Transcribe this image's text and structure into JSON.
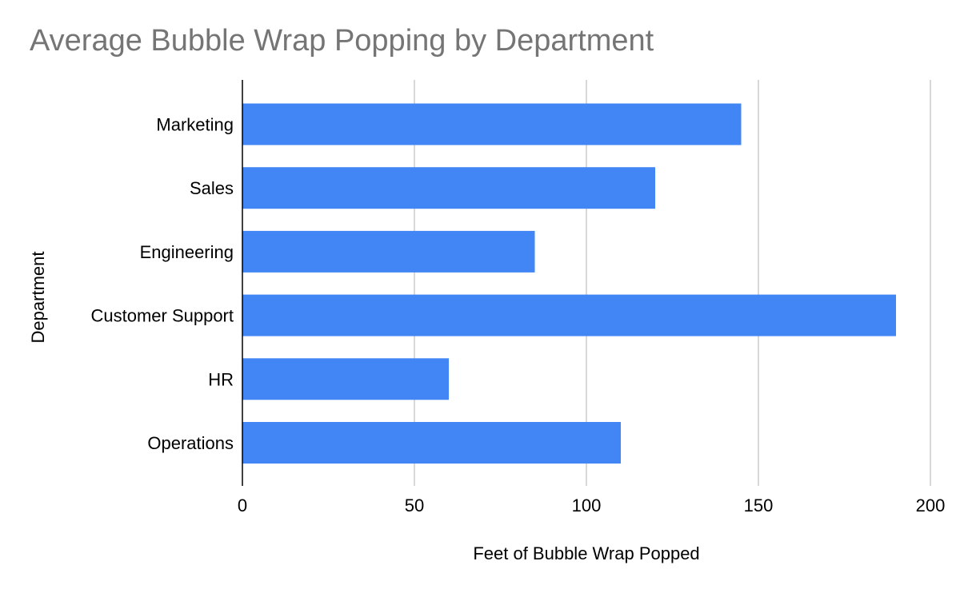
{
  "chart_data": {
    "type": "bar",
    "orientation": "horizontal",
    "title": "Average Bubble Wrap Popping by Department",
    "xlabel": "Feet of Bubble Wrap Popped",
    "ylabel": "Department",
    "categories": [
      "Marketing",
      "Sales",
      "Engineering",
      "Customer Support",
      "HR",
      "Operations"
    ],
    "values": [
      145,
      120,
      85,
      190,
      60,
      110
    ],
    "xlim": [
      0,
      200
    ],
    "xticks": [
      0,
      50,
      100,
      150,
      200
    ],
    "grid": true,
    "legend": "none",
    "colors": {
      "bar": "#4285f4",
      "grid": "#cccccc",
      "axis": "#000000",
      "title": "#757575"
    }
  }
}
